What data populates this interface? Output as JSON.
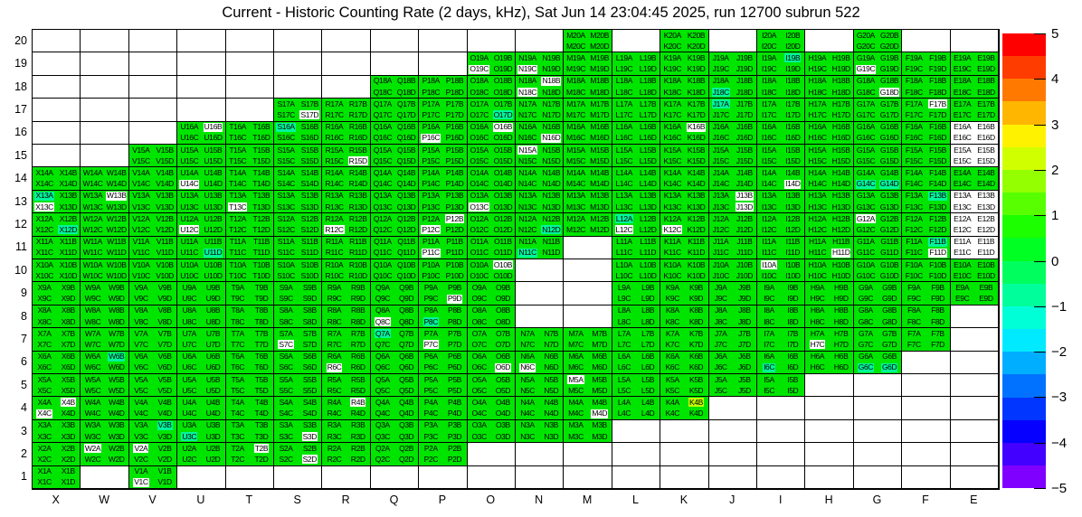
{
  "chart_data": {
    "type": "heatmap",
    "title": "Current - Historic Counting Rate (2 days, kHz), Sat Jun 14 23:04:45 2025, run 12700 subrun 522",
    "x_categories": [
      "X",
      "W",
      "V",
      "U",
      "T",
      "S",
      "R",
      "Q",
      "P",
      "O",
      "N",
      "M",
      "L",
      "K",
      "J",
      "I",
      "H",
      "G",
      "F",
      "E"
    ],
    "y_categories": [
      "20",
      "19",
      "18",
      "17",
      "16",
      "15",
      "14",
      "13",
      "12",
      "11",
      "10",
      "9",
      "8",
      "7",
      "6",
      "5",
      "4",
      "3",
      "2",
      "1"
    ],
    "suffixes": [
      "A",
      "B",
      "C",
      "D"
    ],
    "row_cells": {
      "20": [
        "M",
        "K",
        "I",
        "G"
      ],
      "19": [
        "O",
        "N",
        "M",
        "L",
        "K",
        "J",
        "I",
        "H",
        "G",
        "F",
        "E"
      ],
      "18": [
        "Q",
        "P",
        "O",
        "N",
        "M",
        "L",
        "K",
        "J",
        "I",
        "H",
        "G",
        "F",
        "E"
      ],
      "17": [
        "S",
        "R",
        "Q",
        "P",
        "O",
        "N",
        "M",
        "L",
        "K",
        "J",
        "I",
        "H",
        "G",
        "F",
        "E"
      ],
      "16": [
        "U",
        "T",
        "S",
        "R",
        "Q",
        "P",
        "O",
        "N",
        "M",
        "L",
        "K",
        "J",
        "I",
        "H",
        "G",
        "F",
        "E"
      ],
      "15": [
        "V",
        "U",
        "T",
        "S",
        "R",
        "Q",
        "P",
        "O",
        "N",
        "M",
        "L",
        "K",
        "J",
        "I",
        "H",
        "G",
        "F",
        "E"
      ],
      "14": [
        "X",
        "W",
        "V",
        "U",
        "T",
        "S",
        "R",
        "Q",
        "P",
        "O",
        "N",
        "M",
        "L",
        "K",
        "J",
        "I",
        "H",
        "G",
        "F",
        "E"
      ],
      "13": [
        "X",
        "W",
        "V",
        "U",
        "T",
        "S",
        "R",
        "Q",
        "P",
        "O",
        "N",
        "M",
        "L",
        "K",
        "J",
        "I",
        "H",
        "G",
        "F",
        "E"
      ],
      "12": [
        "X",
        "W",
        "V",
        "U",
        "T",
        "S",
        "R",
        "Q",
        "P",
        "O",
        "N",
        "M",
        "L",
        "K",
        "J",
        "I",
        "H",
        "G",
        "F",
        "E"
      ],
      "11": [
        "X",
        "W",
        "V",
        "U",
        "T",
        "S",
        "R",
        "Q",
        "P",
        "O",
        "N",
        "L",
        "K",
        "J",
        "I",
        "H",
        "G",
        "F",
        "E"
      ],
      "10": [
        "X",
        "W",
        "V",
        "U",
        "T",
        "S",
        "R",
        "Q",
        "P",
        "O",
        "L",
        "K",
        "J",
        "I",
        "H",
        "G",
        "F",
        "E"
      ],
      "9": [
        "X",
        "W",
        "V",
        "U",
        "T",
        "S",
        "R",
        "Q",
        "P",
        "O",
        "L",
        "K",
        "J",
        "I",
        "H",
        "G",
        "F",
        "E"
      ],
      "8": [
        "X",
        "W",
        "V",
        "U",
        "T",
        "S",
        "R",
        "Q",
        "P",
        "O",
        "L",
        "K",
        "J",
        "I",
        "H",
        "G",
        "F"
      ],
      "7": [
        "X",
        "W",
        "V",
        "U",
        "T",
        "S",
        "R",
        "Q",
        "P",
        "O",
        "N",
        "M",
        "L",
        "K",
        "J",
        "I",
        "H",
        "G",
        "F"
      ],
      "6": [
        "X",
        "W",
        "V",
        "U",
        "T",
        "S",
        "R",
        "Q",
        "P",
        "O",
        "N",
        "M",
        "L",
        "K",
        "J",
        "I",
        "H",
        "G"
      ],
      "5": [
        "X",
        "W",
        "V",
        "U",
        "T",
        "S",
        "R",
        "Q",
        "P",
        "O",
        "N",
        "M",
        "L",
        "K",
        "J",
        "I"
      ],
      "4": [
        "X",
        "W",
        "V",
        "U",
        "T",
        "S",
        "R",
        "Q",
        "P",
        "O",
        "N",
        "M",
        "L",
        "K"
      ],
      "3": [
        "X",
        "W",
        "V",
        "U",
        "T",
        "S",
        "R",
        "Q",
        "P",
        "O",
        "N",
        "M"
      ],
      "2": [
        "X",
        "W",
        "V",
        "U",
        "T",
        "S",
        "R",
        "Q",
        "P"
      ],
      "1": [
        "X",
        "V"
      ]
    },
    "white_cells": [
      "E16",
      "E15",
      "E13",
      "E12",
      "E11"
    ],
    "white_labels": [
      "O19C",
      "N19C",
      "G19C",
      "N18B",
      "N18C",
      "G18D",
      "S17D",
      "F17B",
      "U16B",
      "O16B",
      "K16B",
      "P16C",
      "N16D",
      "R15D",
      "N15A",
      "U14C",
      "I14D",
      "X13C",
      "W13B",
      "T13C",
      "O13C",
      "J13B",
      "J13D",
      "U12C",
      "P12B",
      "P12C",
      "L12C",
      "K12C",
      "G12A",
      "R12C",
      "P11C",
      "H11D",
      "F11D",
      "I10A",
      "O10B",
      "P9D",
      "Q8C",
      "S7C",
      "P7C",
      "H7C",
      "R6C",
      "O6D",
      "N6C",
      "M5A",
      "X4B",
      "X4C",
      "R4B",
      "M4D",
      "S3D",
      "W2A",
      "V2A",
      "T2B",
      "S2D",
      "V1C"
    ],
    "mint_labels": [
      "I19B",
      "J18C",
      "J17A",
      "O17D",
      "S16A",
      "X13A",
      "F13B",
      "G14C",
      "G14D",
      "X12D",
      "N12D",
      "L12A",
      "N11C",
      "U11D",
      "F11B",
      "P8C",
      "Q7A",
      "W6B",
      "I6C",
      "G6C",
      "G6D",
      "U3C",
      "V3B"
    ],
    "lime_labels": [
      "K4B"
    ],
    "value_legend": {
      "green_bg": 0,
      "mint_bg": -0.5,
      "lime_bg": 2,
      "white_bg": "no data"
    },
    "colors": {
      "green": "#00E500",
      "mint": "#00F59B",
      "lime": "#BFFF00",
      "white": "#FFFFFF"
    },
    "colorbar": {
      "min": -5,
      "max": 5,
      "tick_labels": [
        "5",
        "4",
        "3",
        "2",
        "1",
        "0",
        "−1",
        "−2",
        "−3",
        "−4",
        "−5"
      ],
      "band_colors": [
        "#FF0000",
        "#FF3C00",
        "#FF7900",
        "#FFB600",
        "#FFF200",
        "#D0FF00",
        "#94FF00",
        "#57FF00",
        "#1BFF00",
        "#00FF22",
        "#00FF5E",
        "#00FF9B",
        "#00FFD7",
        "#00EAFF",
        "#00AEFF",
        "#0072FF",
        "#0036FF",
        "#0500FF",
        "#4100FF",
        "#7F00FF"
      ]
    },
    "layout": {
      "grid_on": true,
      "colorbar_position": "right"
    }
  }
}
